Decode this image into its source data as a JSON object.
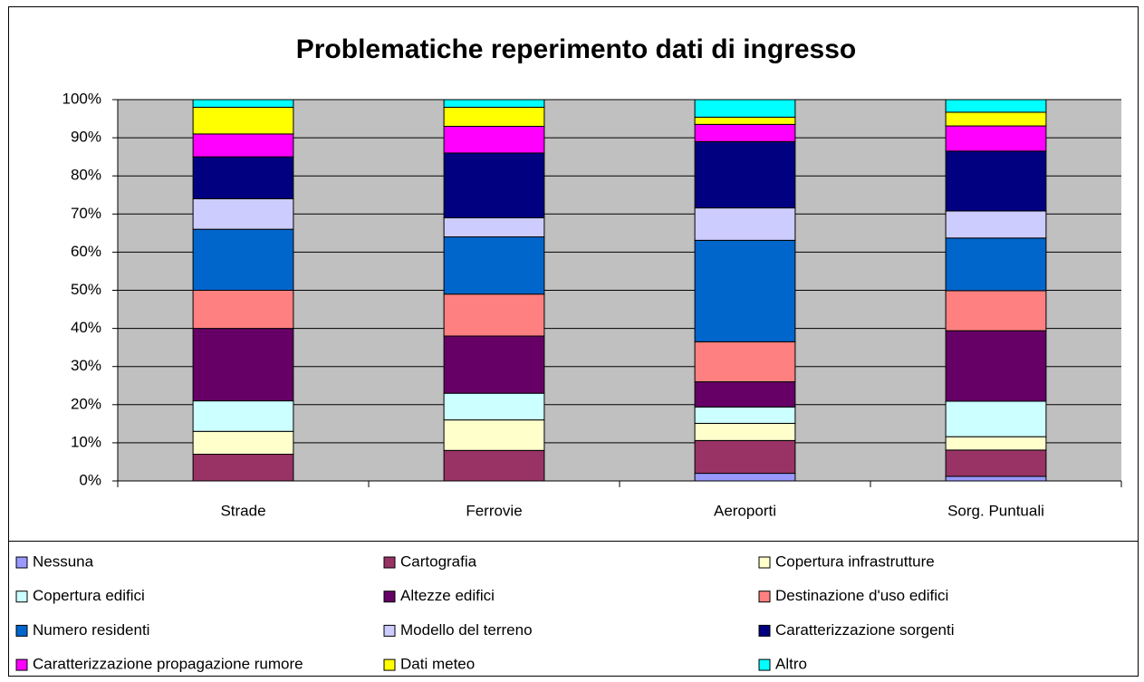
{
  "chart_data": {
    "type": "stacked_bar",
    "title": "Problematiche reperimento dati di ingresso",
    "categories": [
      "Strade",
      "Ferrovie",
      "Aeroporti",
      "Sorg. Puntuali"
    ],
    "ylim": [
      0,
      100
    ],
    "yticks": [
      {
        "value": 0,
        "label": "0%"
      },
      {
        "value": 10,
        "label": "10%"
      },
      {
        "value": 20,
        "label": "20%"
      },
      {
        "value": 30,
        "label": "30%"
      },
      {
        "value": 40,
        "label": "40%"
      },
      {
        "value": 50,
        "label": "50%"
      },
      {
        "value": 60,
        "label": "60%"
      },
      {
        "value": 70,
        "label": "70%"
      },
      {
        "value": 80,
        "label": "80%"
      },
      {
        "value": 90,
        "label": "90%"
      },
      {
        "value": 100,
        "label": "100%"
      }
    ],
    "grid": true,
    "legend": "bottom",
    "series": [
      {
        "name": "Nessuna",
        "color": "#9999FF",
        "values": [
          0,
          0,
          2,
          1.2
        ]
      },
      {
        "name": "Cartografia",
        "color": "#993366",
        "values": [
          7,
          8,
          8.6,
          6.9
        ]
      },
      {
        "name": "Copertura infrastrutture",
        "color": "#FFFFCC",
        "values": [
          6,
          8,
          4.5,
          3.5
        ]
      },
      {
        "name": "Copertura edifici",
        "color": "#CCFFFF",
        "values": [
          8,
          7,
          4.3,
          9.3
        ]
      },
      {
        "name": "Altezze edifici",
        "color": "#660066",
        "values": [
          19,
          15,
          6.6,
          18.5
        ]
      },
      {
        "name": "Destinazione d'uso edifici",
        "color": "#FF8080",
        "values": [
          10,
          11,
          10.5,
          10.5
        ]
      },
      {
        "name": "Numero residenti",
        "color": "#0066CC",
        "values": [
          16,
          15,
          26.6,
          13.8
        ]
      },
      {
        "name": "Modello del terreno",
        "color": "#CCCCFF",
        "values": [
          8,
          5,
          8.5,
          7.1
        ]
      },
      {
        "name": "Caratterizzazione sorgenti",
        "color": "#000080",
        "values": [
          11,
          17,
          17.4,
          15.7
        ]
      },
      {
        "name": "Caratterizzazione propagazione rumore",
        "color": "#FF00FF",
        "values": [
          6,
          7,
          4.5,
          6.6
        ]
      },
      {
        "name": "Dati meteo",
        "color": "#FFFF00",
        "values": [
          7,
          5,
          1.9,
          3.6
        ]
      },
      {
        "name": "Altro",
        "color": "#00FFFF",
        "values": [
          2,
          2,
          4.6,
          3.3
        ]
      }
    ]
  }
}
